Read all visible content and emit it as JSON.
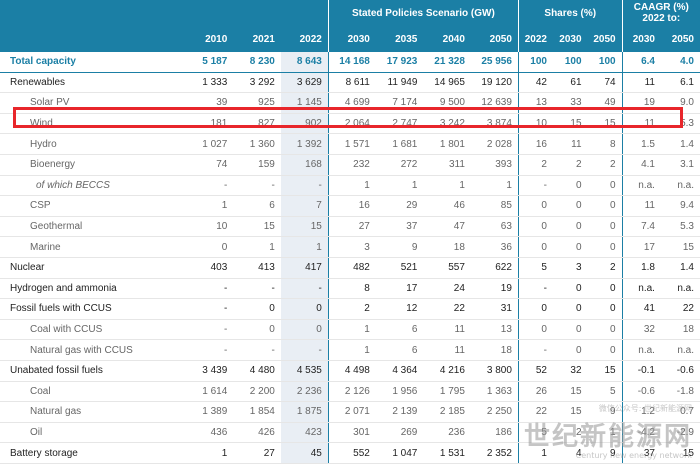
{
  "header": {
    "scenario_label": "Stated Policies Scenario (GW)",
    "shares_label": "Shares (%)",
    "caagr_label": "CAAGR (%)",
    "caagr_sub": "2022 to:",
    "years": [
      "2010",
      "2021",
      "2022",
      "2030",
      "2035",
      "2040",
      "2050"
    ],
    "share_years": [
      "2022",
      "2030",
      "2050"
    ],
    "caagr_years": [
      "2030",
      "2050"
    ]
  },
  "rows": [
    {
      "label": "Total capacity",
      "values": [
        "5 187",
        "8 230",
        "8 643",
        "14 168",
        "17 923",
        "21 328",
        "25 956",
        "100",
        "100",
        "100",
        "6.4",
        "4.0"
      ]
    },
    {
      "label": "Renewables",
      "values": [
        "1 333",
        "3 292",
        "3 629",
        "8 611",
        "11 949",
        "14 965",
        "19 120",
        "42",
        "61",
        "74",
        "11",
        "6.1"
      ]
    },
    {
      "label": "Solar PV",
      "values": [
        "39",
        "925",
        "1 145",
        "4 699",
        "7 174",
        "9 500",
        "12 639",
        "13",
        "33",
        "49",
        "19",
        "9.0"
      ]
    },
    {
      "label": "Wind",
      "values": [
        "181",
        "827",
        "902",
        "2 064",
        "2 747",
        "3 242",
        "3 874",
        "10",
        "15",
        "15",
        "11",
        "5.3"
      ]
    },
    {
      "label": "Hydro",
      "values": [
        "1 027",
        "1 360",
        "1 392",
        "1 571",
        "1 681",
        "1 801",
        "2 028",
        "16",
        "11",
        "8",
        "1.5",
        "1.4"
      ]
    },
    {
      "label": "Bioenergy",
      "values": [
        "74",
        "159",
        "168",
        "232",
        "272",
        "311",
        "393",
        "2",
        "2",
        "2",
        "4.1",
        "3.1"
      ]
    },
    {
      "label": "of which BECCS",
      "values": [
        "-",
        "-",
        "-",
        "1",
        "1",
        "1",
        "1",
        "-",
        "0",
        "0",
        "n.a.",
        "n.a."
      ]
    },
    {
      "label": "CSP",
      "values": [
        "1",
        "6",
        "7",
        "16",
        "29",
        "46",
        "85",
        "0",
        "0",
        "0",
        "11",
        "9.4"
      ]
    },
    {
      "label": "Geothermal",
      "values": [
        "10",
        "15",
        "15",
        "27",
        "37",
        "47",
        "63",
        "0",
        "0",
        "0",
        "7.4",
        "5.3"
      ]
    },
    {
      "label": "Marine",
      "values": [
        "0",
        "1",
        "1",
        "3",
        "9",
        "18",
        "36",
        "0",
        "0",
        "0",
        "17",
        "15"
      ]
    },
    {
      "label": "Nuclear",
      "values": [
        "403",
        "413",
        "417",
        "482",
        "521",
        "557",
        "622",
        "5",
        "3",
        "2",
        "1.8",
        "1.4"
      ]
    },
    {
      "label": "Hydrogen and ammonia",
      "values": [
        "-",
        "-",
        "-",
        "8",
        "17",
        "24",
        "19",
        "-",
        "0",
        "0",
        "n.a.",
        "n.a."
      ]
    },
    {
      "label": "Fossil fuels with CCUS",
      "values": [
        "-",
        "0",
        "0",
        "2",
        "12",
        "22",
        "31",
        "0",
        "0",
        "0",
        "41",
        "22"
      ]
    },
    {
      "label": "Coal with CCUS",
      "values": [
        "-",
        "0",
        "0",
        "1",
        "6",
        "11",
        "13",
        "0",
        "0",
        "0",
        "32",
        "18"
      ]
    },
    {
      "label": "Natural gas with CCUS",
      "values": [
        "-",
        "-",
        "-",
        "1",
        "6",
        "11",
        "18",
        "-",
        "0",
        "0",
        "n.a.",
        "n.a."
      ]
    },
    {
      "label": "Unabated fossil fuels",
      "values": [
        "3 439",
        "4 480",
        "4 535",
        "4 498",
        "4 364",
        "4 216",
        "3 800",
        "52",
        "32",
        "15",
        "-0.1",
        "-0.6"
      ]
    },
    {
      "label": "Coal",
      "values": [
        "1 614",
        "2 200",
        "2 236",
        "2 126",
        "1 956",
        "1 795",
        "1 363",
        "26",
        "15",
        "5",
        "-0.6",
        "-1.8"
      ]
    },
    {
      "label": "Natural gas",
      "values": [
        "1 389",
        "1 854",
        "1 875",
        "2 071",
        "2 139",
        "2 185",
        "2 250",
        "22",
        "15",
        "9",
        "1.2",
        "0.7"
      ]
    },
    {
      "label": "Oil",
      "values": [
        "436",
        "426",
        "423",
        "301",
        "269",
        "236",
        "186",
        "5",
        "2",
        "1",
        "-4.2",
        "-2.9"
      ]
    },
    {
      "label": "Battery storage",
      "values": [
        "1",
        "27",
        "45",
        "552",
        "1 047",
        "1 531",
        "2 352",
        "1",
        "4",
        "9",
        "37",
        "15"
      ]
    }
  ],
  "watermark": {
    "top": "微信公众号: 世纪新能源网",
    "main": "世纪新能源网",
    "sub": "Century new energy network"
  },
  "colors": {
    "header_bg": "#1b7fa5",
    "highlight": "#e8262b",
    "shade": "#e9eef4"
  }
}
